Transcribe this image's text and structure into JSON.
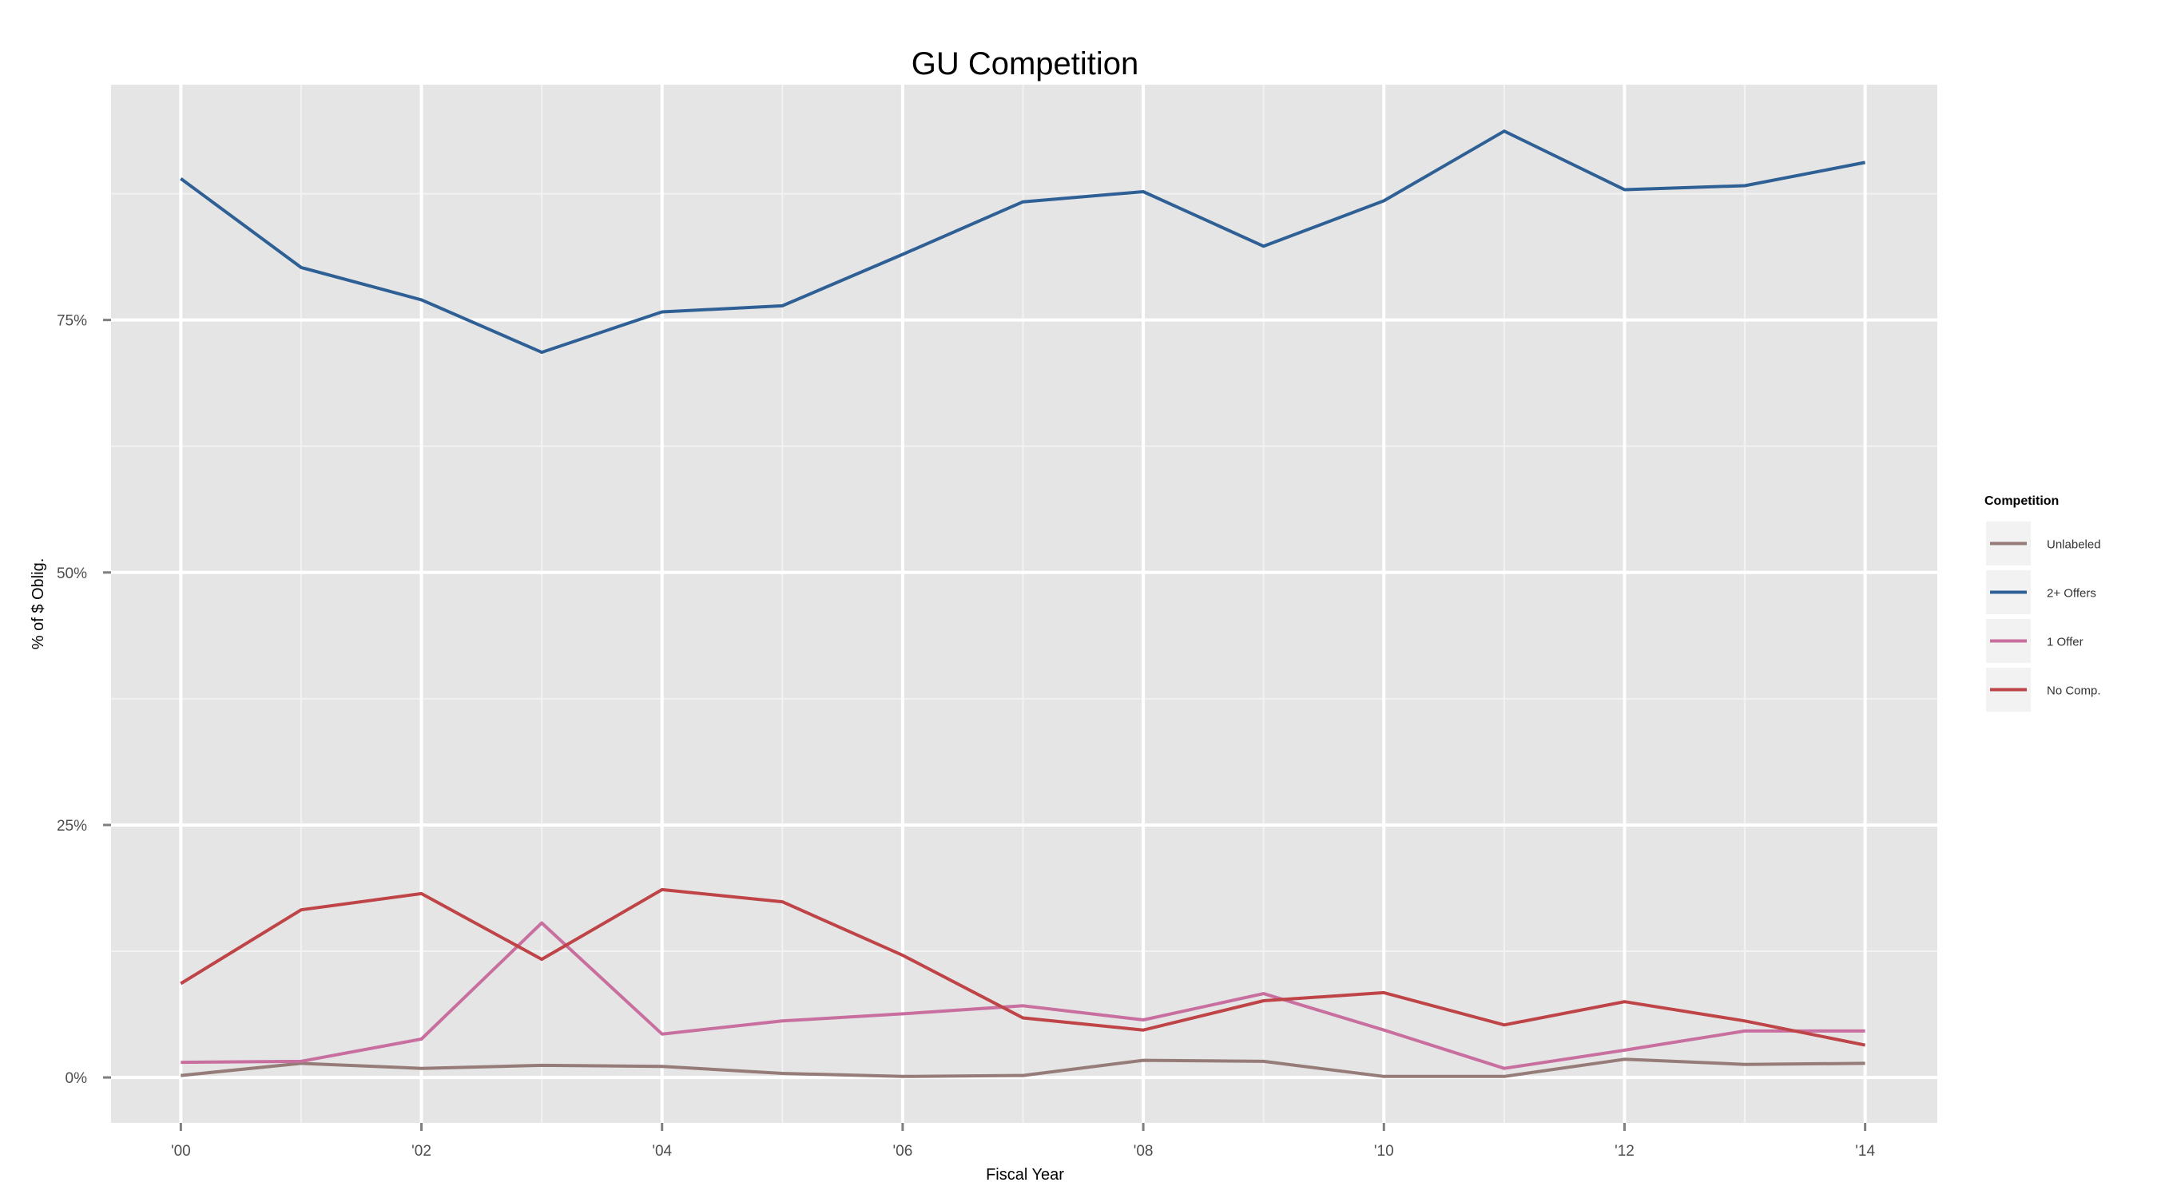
{
  "chart_data": {
    "type": "line",
    "title": "GU Competition",
    "xlabel": "Fiscal Year",
    "ylabel": "% of $ Oblig.",
    "x": [
      2000,
      2001,
      2002,
      2003,
      2004,
      2005,
      2006,
      2007,
      2008,
      2009,
      2010,
      2011,
      2012,
      2013,
      2014
    ],
    "x_ticks": [
      {
        "value": 2000,
        "label": "'00"
      },
      {
        "value": 2002,
        "label": "'02"
      },
      {
        "value": 2004,
        "label": "'04"
      },
      {
        "value": 2006,
        "label": "'06"
      },
      {
        "value": 2008,
        "label": "'08"
      },
      {
        "value": 2010,
        "label": "'10"
      },
      {
        "value": 2012,
        "label": "'12"
      },
      {
        "value": 2014,
        "label": "'14"
      }
    ],
    "y_ticks": [
      {
        "value": 0,
        "label": "0%"
      },
      {
        "value": 25,
        "label": "25%"
      },
      {
        "value": 50,
        "label": "50%"
      },
      {
        "value": 75,
        "label": "75%"
      }
    ],
    "xlim": [
      1999.42,
      2014.6
    ],
    "ylim": [
      -4.5,
      98.3
    ],
    "grid": true,
    "legend": {
      "title": "Competition",
      "position": "right"
    },
    "series": [
      {
        "name": "Unlabeled",
        "color": "#967c78",
        "values": [
          0.2,
          1.4,
          0.9,
          1.2,
          1.1,
          0.4,
          0.1,
          0.2,
          1.7,
          1.6,
          0.1,
          0.1,
          1.8,
          1.3,
          1.4
        ]
      },
      {
        "name": "2+ Offers",
        "color": "#2f6095",
        "values": [
          89.0,
          80.2,
          77.0,
          71.8,
          75.8,
          76.4,
          81.5,
          86.7,
          87.7,
          82.3,
          86.8,
          93.7,
          87.9,
          88.3,
          90.6
        ]
      },
      {
        "name": "1 Offer",
        "color": "#c86f9f",
        "values": [
          1.5,
          1.6,
          3.8,
          15.3,
          4.3,
          5.6,
          6.3,
          7.1,
          5.7,
          8.3,
          4.7,
          0.9,
          2.7,
          4.6,
          4.6
        ]
      },
      {
        "name": "No Comp.",
        "color": "#bf4447",
        "values": [
          9.3,
          16.6,
          18.2,
          11.7,
          18.6,
          17.4,
          12.1,
          5.9,
          4.7,
          7.6,
          8.4,
          5.2,
          7.5,
          5.6,
          3.2
        ]
      }
    ]
  }
}
